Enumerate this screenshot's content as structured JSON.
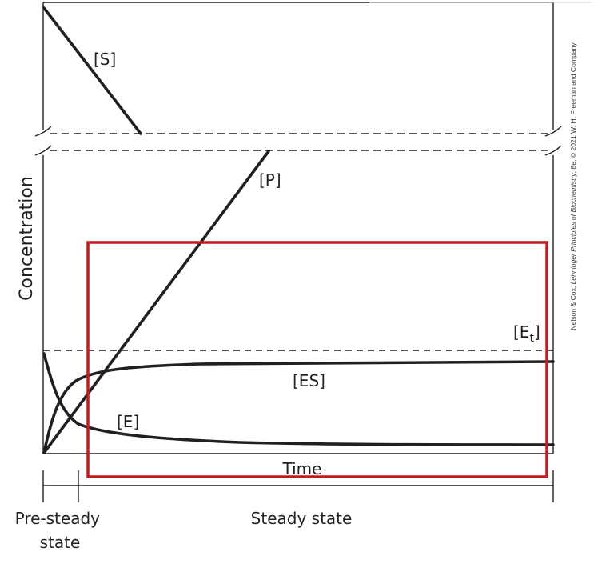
{
  "diagram": {
    "y_axis_label": "Concentration",
    "x_axis_label": "Time",
    "phases": {
      "pre_steady": {
        "line1": "Pre-steady",
        "line2": "state"
      },
      "steady": "Steady state"
    },
    "curve_labels": {
      "substrate": "[S]",
      "product": "[P]",
      "es_complex": "[ES]",
      "free_enzyme": "[E]",
      "total_enzyme_base": "[E",
      "total_enzyme_sub": "t",
      "total_enzyme_close": "]"
    },
    "credit": {
      "prefix": "Nelson & Cox, ",
      "title": "Lehninger Principles of Biochemistry",
      "suffix": ", 8e, © 2021 W. H. Freeman and Company"
    },
    "colors": {
      "curve": "#231f20",
      "highlight_box": "#c4191f",
      "dashed_lines": "#231f20"
    }
  }
}
